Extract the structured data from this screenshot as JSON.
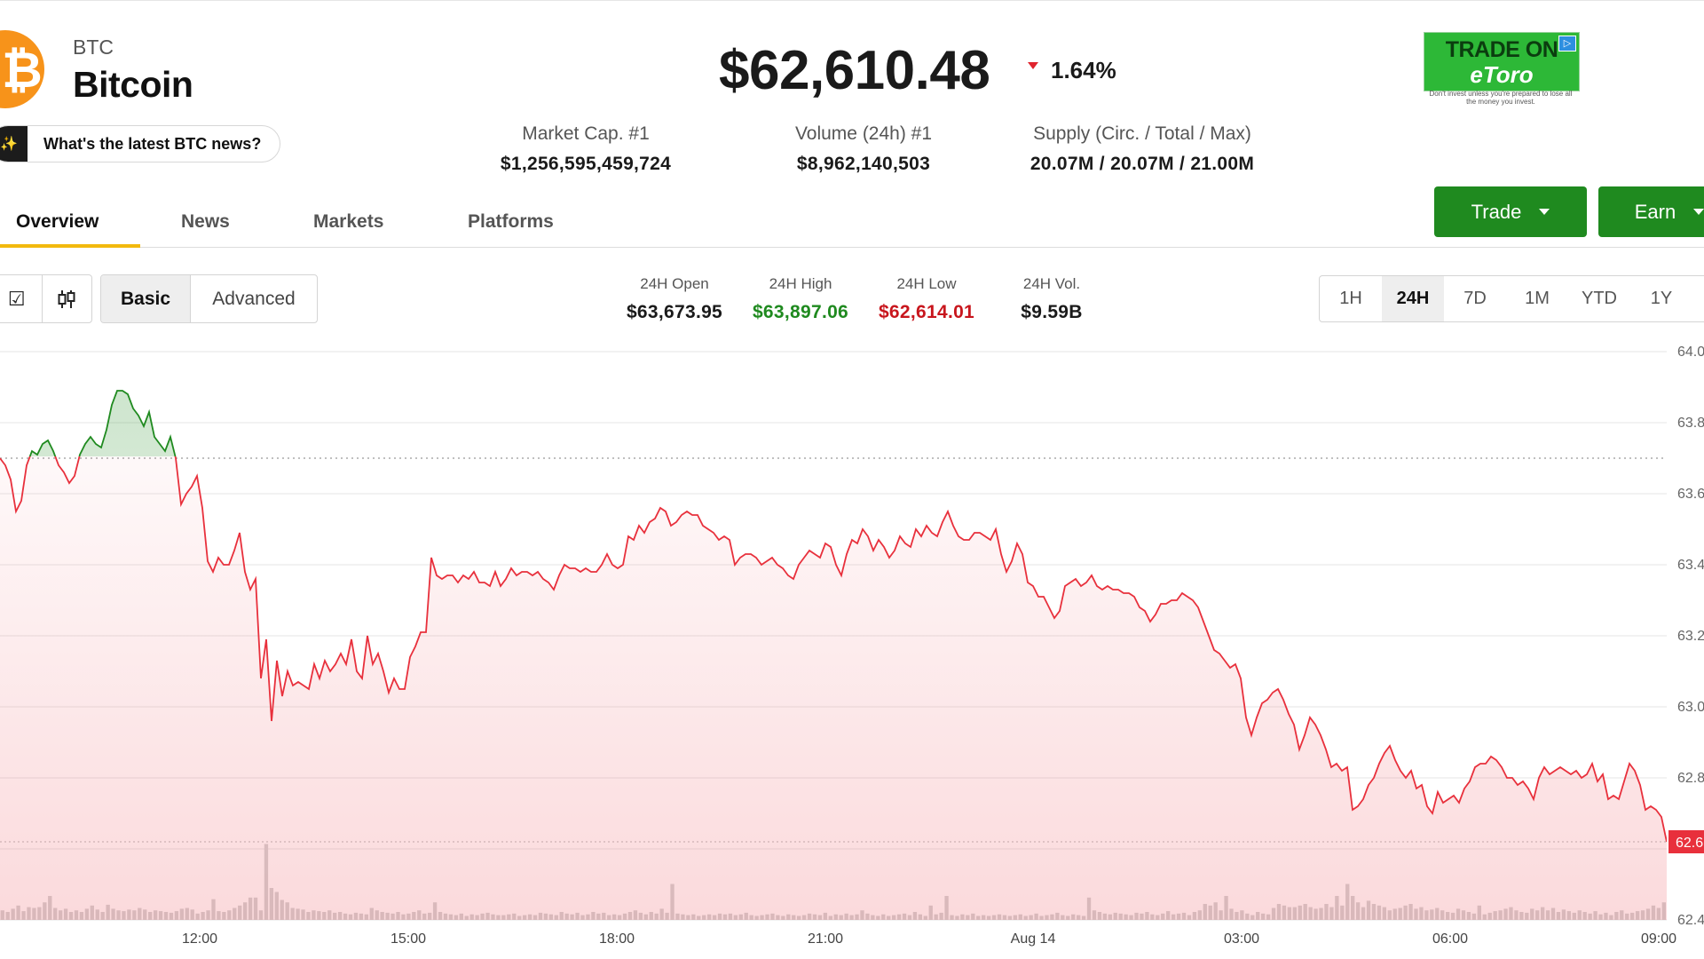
{
  "coin": {
    "symbol": "BTC",
    "name": "Bitcoin",
    "logo_glyph": "₿",
    "logo_color": "#f7931a"
  },
  "news_prompt": {
    "icon": "sparkle-icon",
    "label": "What's the latest BTC news?"
  },
  "price": {
    "value": "$62,610.48",
    "change": "1.64%",
    "direction": "down",
    "down_color": "#e0242e"
  },
  "stats": [
    {
      "label": "Market Cap. #1",
      "value": "$1,256,595,459,724"
    },
    {
      "label": "Volume (24h) #1",
      "value": "$8,962,140,503"
    },
    {
      "label": "Supply (Circ. / Total / Max)",
      "value": "20.07M / 20.07M / 21.00M"
    }
  ],
  "ad": {
    "line1": "TRADE ON",
    "line2": "eToro",
    "disclaimer": "Don't invest unless you're prepared to lose all the money you invest.",
    "color": "#2db837"
  },
  "tabs": [
    {
      "label": "Overview",
      "active": true
    },
    {
      "label": "News",
      "active": false
    },
    {
      "label": "Markets",
      "active": false
    },
    {
      "label": "Platforms",
      "active": false
    }
  ],
  "actions": {
    "trade_label": "Trade",
    "earn_label": "Earn",
    "color": "#1f8a1f"
  },
  "chart_controls": {
    "type_icons": [
      "checkbox-icon",
      "candlestick-icon"
    ],
    "modes": [
      "Basic",
      "Advanced"
    ],
    "selected_mode": "Basic",
    "ranges": [
      "1H",
      "24H",
      "7D",
      "1M",
      "YTD",
      "1Y"
    ],
    "selected_range": "24H"
  },
  "ohlc": [
    {
      "label": "24H Open",
      "value": "$63,673.95",
      "color": "#1a1a1a"
    },
    {
      "label": "24H High",
      "value": "$63,897.06",
      "color": "#1f8a1f"
    },
    {
      "label": "24H Low",
      "value": "$62,614.01",
      "color": "#c8161d"
    },
    {
      "label": "24H Vol.",
      "value": "$9.59B",
      "color": "#1a1a1a"
    }
  ],
  "chart_data": {
    "type": "line",
    "x_labels": [
      "12:00",
      "15:00",
      "18:00",
      "21:00",
      "Aug 14",
      "03:00",
      "06:00",
      "09:00"
    ],
    "y_tick_labels": [
      "64.0",
      "63.8",
      "63.6",
      "63.4",
      "63.2",
      "63.0",
      "62.8",
      "62.6",
      "62.4"
    ],
    "y_unit": "thousand USD",
    "ylim": [
      62.4,
      64.0
    ],
    "reference_line": 63.7,
    "current_price_label": "62.6",
    "up_color": "#1f8a1f",
    "down_color": "#e8303c",
    "price": [
      63.7,
      63.68,
      63.64,
      63.55,
      63.58,
      63.68,
      63.72,
      63.71,
      63.74,
      63.75,
      63.72,
      63.68,
      63.66,
      63.63,
      63.65,
      63.71,
      63.74,
      63.76,
      63.74,
      63.73,
      63.78,
      63.85,
      63.89,
      63.89,
      63.88,
      63.84,
      63.82,
      63.79,
      63.83,
      63.76,
      63.74,
      63.72,
      63.76,
      63.7,
      63.57,
      63.6,
      63.62,
      63.65,
      63.56,
      63.41,
      63.38,
      63.42,
      63.4,
      63.4,
      63.44,
      63.49,
      63.38,
      63.33,
      63.36,
      63.08,
      63.19,
      62.96,
      63.13,
      63.03,
      63.1,
      63.06,
      63.07,
      63.06,
      63.05,
      63.12,
      63.08,
      63.13,
      63.1,
      63.12,
      63.15,
      63.12,
      63.19,
      63.1,
      63.08,
      63.2,
      63.12,
      63.15,
      63.1,
      63.04,
      63.08,
      63.05,
      63.05,
      63.14,
      63.17,
      63.21,
      63.21,
      63.42,
      63.37,
      63.36,
      63.37,
      63.37,
      63.35,
      63.37,
      63.36,
      63.38,
      63.35,
      63.35,
      63.34,
      63.38,
      63.34,
      63.36,
      63.39,
      63.37,
      63.38,
      63.38,
      63.37,
      63.38,
      63.36,
      63.35,
      63.33,
      63.37,
      63.4,
      63.39,
      63.39,
      63.38,
      63.39,
      63.38,
      63.38,
      63.4,
      63.43,
      63.4,
      63.39,
      63.4,
      63.48,
      63.47,
      63.51,
      63.49,
      63.52,
      63.53,
      63.56,
      63.55,
      63.51,
      63.52,
      63.54,
      63.55,
      63.54,
      63.54,
      63.51,
      63.5,
      63.49,
      63.47,
      63.48,
      63.47,
      63.4,
      63.42,
      63.43,
      63.43,
      63.42,
      63.4,
      63.41,
      63.42,
      63.4,
      63.39,
      63.37,
      63.36,
      63.4,
      63.42,
      63.44,
      63.43,
      63.42,
      63.46,
      63.45,
      63.4,
      63.37,
      63.43,
      63.47,
      63.46,
      63.5,
      63.48,
      63.44,
      63.47,
      63.45,
      63.42,
      63.44,
      63.48,
      63.46,
      63.45,
      63.5,
      63.48,
      63.51,
      63.49,
      63.48,
      63.52,
      63.55,
      63.51,
      63.48,
      63.47,
      63.47,
      63.49,
      63.49,
      63.48,
      63.47,
      63.5,
      63.43,
      63.38,
      63.41,
      63.46,
      63.43,
      63.35,
      63.34,
      63.31,
      63.31,
      63.28,
      63.25,
      63.27,
      63.34,
      63.35,
      63.36,
      63.34,
      63.35,
      63.37,
      63.34,
      63.33,
      63.34,
      63.33,
      63.33,
      63.32,
      63.32,
      63.31,
      63.28,
      63.27,
      63.24,
      63.26,
      63.29,
      63.29,
      63.3,
      63.3,
      63.32,
      63.31,
      63.3,
      63.28,
      63.24,
      63.2,
      63.16,
      63.15,
      63.13,
      63.11,
      63.12,
      63.08,
      62.97,
      62.92,
      62.97,
      63.01,
      63.02,
      63.04,
      63.05,
      63.02,
      62.98,
      62.95,
      62.88,
      62.92,
      62.97,
      62.95,
      62.92,
      62.88,
      62.83,
      62.84,
      62.82,
      62.83,
      62.71,
      62.72,
      62.74,
      62.78,
      62.8,
      62.84,
      62.87,
      62.89,
      62.85,
      62.82,
      62.8,
      62.82,
      62.77,
      62.78,
      62.72,
      62.7,
      62.76,
      62.73,
      62.74,
      62.75,
      62.73,
      62.77,
      62.79,
      62.83,
      62.84,
      62.84,
      62.86,
      62.85,
      62.83,
      62.8,
      62.8,
      62.78,
      62.79,
      62.77,
      62.74,
      62.8,
      62.83,
      62.81,
      62.82,
      62.83,
      62.82,
      62.81,
      62.82,
      62.8,
      62.81,
      62.84,
      62.79,
      62.81,
      62.74,
      62.75,
      62.74,
      62.79,
      62.84,
      62.82,
      62.78,
      62.71,
      62.72,
      62.71,
      62.69,
      62.62
    ],
    "volume": [
      0.12,
      0.1,
      0.14,
      0.18,
      0.11,
      0.16,
      0.15,
      0.16,
      0.22,
      0.3,
      0.15,
      0.12,
      0.14,
      0.1,
      0.12,
      0.1,
      0.14,
      0.18,
      0.13,
      0.1,
      0.19,
      0.14,
      0.12,
      0.11,
      0.13,
      0.12,
      0.15,
      0.13,
      0.1,
      0.12,
      0.11,
      0.1,
      0.09,
      0.11,
      0.14,
      0.15,
      0.13,
      0.08,
      0.1,
      0.12,
      0.26,
      0.11,
      0.1,
      0.12,
      0.15,
      0.18,
      0.22,
      0.28,
      0.28,
      0.12,
      0.95,
      0.4,
      0.35,
      0.25,
      0.22,
      0.15,
      0.14,
      0.13,
      0.1,
      0.12,
      0.11,
      0.1,
      0.12,
      0.09,
      0.1,
      0.08,
      0.07,
      0.09,
      0.08,
      0.07,
      0.15,
      0.12,
      0.1,
      0.09,
      0.08,
      0.1,
      0.07,
      0.08,
      0.1,
      0.12,
      0.08,
      0.09,
      0.22,
      0.1,
      0.08,
      0.07,
      0.06,
      0.08,
      0.05,
      0.07,
      0.06,
      0.08,
      0.09,
      0.07,
      0.06,
      0.06,
      0.07,
      0.08,
      0.05,
      0.06,
      0.07,
      0.06,
      0.09,
      0.08,
      0.07,
      0.06,
      0.1,
      0.08,
      0.07,
      0.09,
      0.06,
      0.07,
      0.1,
      0.08,
      0.09,
      0.06,
      0.07,
      0.06,
      0.08,
      0.1,
      0.12,
      0.09,
      0.07,
      0.1,
      0.08,
      0.14,
      0.09,
      0.45,
      0.08,
      0.07,
      0.06,
      0.07,
      0.05,
      0.06,
      0.07,
      0.06,
      0.08,
      0.07,
      0.08,
      0.06,
      0.07,
      0.09,
      0.06,
      0.05,
      0.06,
      0.07,
      0.08,
      0.06,
      0.05,
      0.07,
      0.06,
      0.05,
      0.06,
      0.08,
      0.07,
      0.06,
      0.09,
      0.05,
      0.07,
      0.06,
      0.08,
      0.06,
      0.07,
      0.12,
      0.08,
      0.06,
      0.05,
      0.07,
      0.05,
      0.06,
      0.07,
      0.08,
      0.06,
      0.1,
      0.07,
      0.05,
      0.18,
      0.07,
      0.09,
      0.3,
      0.06,
      0.05,
      0.07,
      0.06,
      0.08,
      0.05,
      0.06,
      0.05,
      0.06,
      0.07,
      0.06,
      0.05,
      0.06,
      0.07,
      0.05,
      0.06,
      0.08,
      0.05,
      0.06,
      0.07,
      0.09,
      0.06,
      0.05,
      0.07,
      0.06,
      0.05,
      0.28,
      0.12,
      0.1,
      0.08,
      0.07,
      0.09,
      0.08,
      0.07,
      0.06,
      0.09,
      0.08,
      0.1,
      0.07,
      0.06,
      0.08,
      0.11,
      0.07,
      0.08,
      0.09,
      0.06,
      0.1,
      0.12,
      0.2,
      0.18,
      0.22,
      0.12,
      0.3,
      0.14,
      0.1,
      0.12,
      0.08,
      0.06,
      0.1,
      0.08,
      0.07,
      0.15,
      0.2,
      0.18,
      0.16,
      0.16,
      0.18,
      0.2,
      0.16,
      0.14,
      0.15,
      0.2,
      0.16,
      0.3,
      0.18,
      0.45,
      0.3,
      0.22,
      0.16,
      0.24,
      0.2,
      0.18,
      0.16,
      0.12,
      0.14,
      0.15,
      0.18,
      0.2,
      0.14,
      0.16,
      0.12,
      0.13,
      0.15,
      0.12,
      0.1,
      0.09,
      0.14,
      0.12,
      0.1,
      0.08,
      0.18,
      0.07,
      0.09,
      0.11,
      0.12,
      0.14,
      0.16,
      0.12,
      0.1,
      0.09,
      0.14,
      0.12,
      0.16,
      0.12,
      0.15,
      0.1,
      0.13,
      0.11,
      0.09,
      0.12,
      0.1,
      0.08,
      0.11,
      0.07,
      0.09,
      0.06,
      0.1,
      0.12,
      0.08,
      0.09,
      0.11,
      0.12,
      0.14,
      0.18,
      0.15,
      0.22
    ]
  }
}
